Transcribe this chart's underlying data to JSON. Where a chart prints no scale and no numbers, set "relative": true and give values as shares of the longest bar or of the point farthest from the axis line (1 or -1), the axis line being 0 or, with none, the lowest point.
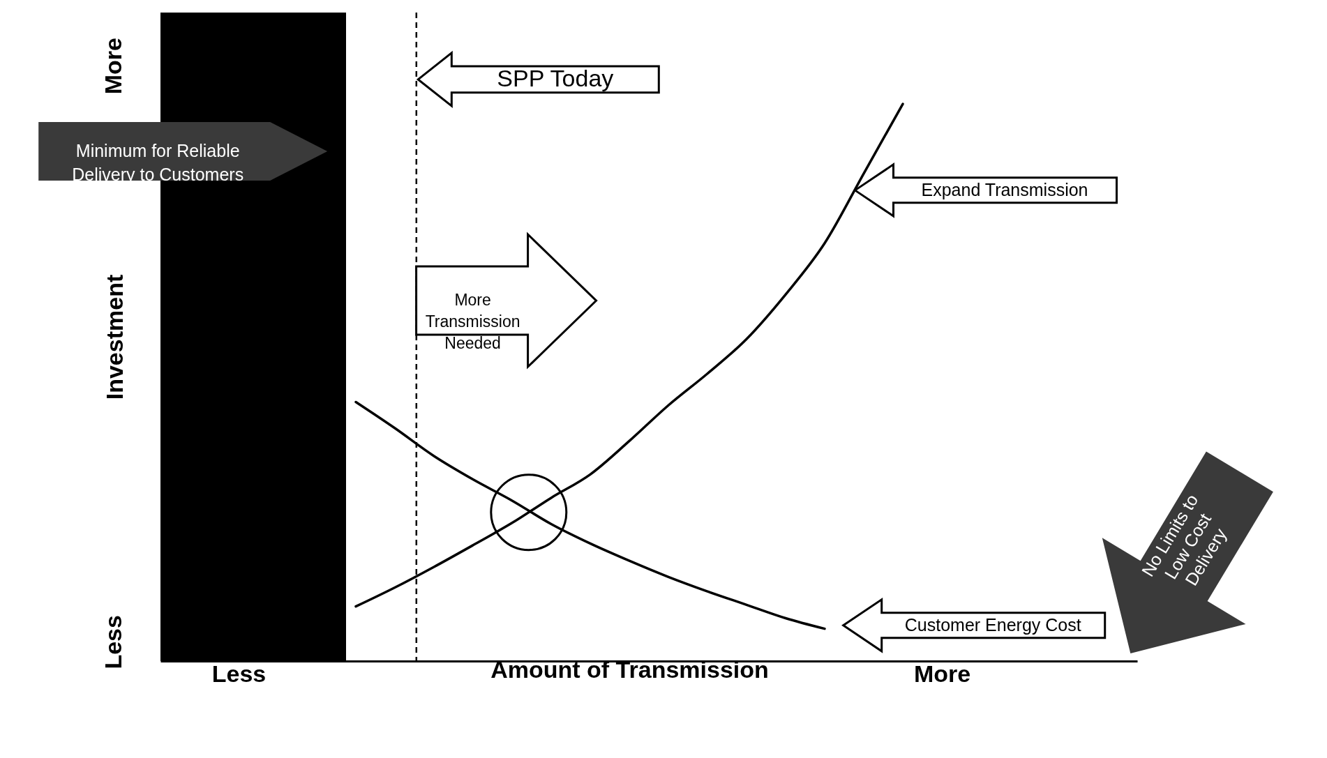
{
  "chart_data": {
    "type": "line",
    "relative": true,
    "xlabel": "Amount of Transmission",
    "ylabel": "Investment",
    "categories": [
      null,
      null,
      "Less",
      null,
      null,
      null,
      null,
      null,
      null,
      null,
      null,
      null,
      null,
      null,
      null,
      null,
      null,
      null,
      null,
      null,
      "More",
      null,
      null,
      null,
      null,
      null
    ],
    "series": [
      {
        "name": "Expand Transmission",
        "color": "#000000",
        "values": [
          null,
          null,
          null,
          null,
          null,
          0.098,
          0.132,
          0.169,
          0.208,
          0.248,
          0.293,
          0.335,
          0.395,
          0.459,
          0.516,
          0.578,
          0.658,
          0.75,
          0.875,
          1,
          null,
          null,
          null,
          null,
          null,
          null
        ]
      },
      {
        "name": "Customer Energy Cost",
        "color": "#000000",
        "values": [
          null,
          null,
          null,
          null,
          null,
          0.465,
          0.418,
          0.368,
          0.326,
          0.288,
          0.246,
          0.211,
          0.18,
          0.151,
          0.125,
          0.101,
          0.077,
          0.058,
          null,
          null,
          null,
          null,
          null,
          null,
          null,
          null
        ]
      }
    ],
    "annotations": [
      "More",
      "Less",
      "More\nTransmission\nNeeded",
      "No Limits to\nLow Cost\nDelivery",
      "SPP Today",
      "Minimum for Reliable\nDelivery to Customers"
    ],
    "grid": false,
    "marker": "none",
    "line_style": "solid"
  }
}
